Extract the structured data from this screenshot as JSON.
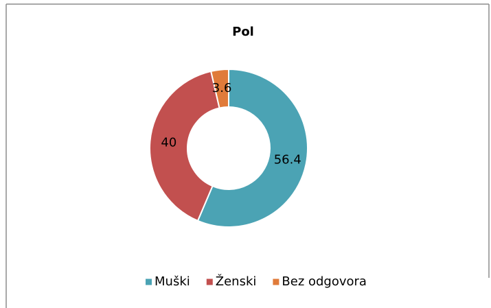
{
  "chart_data": {
    "type": "pie",
    "title": "Pol",
    "donut": true,
    "categories": [
      "Muški",
      "Ženski",
      "Bez odgovora"
    ],
    "values": [
      56.4,
      40,
      3.6
    ],
    "colors": [
      "#4ba3b4",
      "#c2504f",
      "#e07b3a"
    ],
    "legend": "bottom"
  }
}
